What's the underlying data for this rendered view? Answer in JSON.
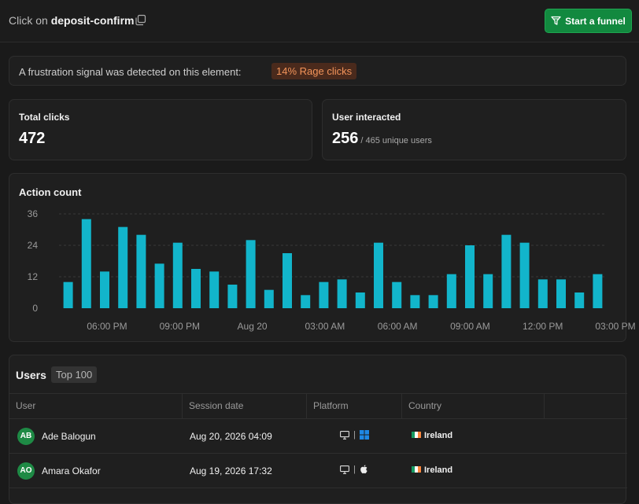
{
  "header": {
    "prefix": "Click on",
    "element": "deposit-confirm",
    "funnel_label": "Start a funnel"
  },
  "frustration": {
    "text": "A frustration signal was detected on this element:",
    "badge": "14% Rage clicks"
  },
  "stats": {
    "total_clicks_label": "Total clicks",
    "total_clicks_value": "472",
    "users_label": "User interacted",
    "users_value": "256",
    "users_sub": "/ 465 unique users"
  },
  "chart_data": {
    "type": "bar",
    "title": "Action count",
    "ylim": [
      0,
      36
    ],
    "yticks": [
      "36",
      "24",
      "12",
      "0"
    ],
    "xticks": [
      "06:00 PM",
      "09:00 PM",
      "Aug 20",
      "03:00 AM",
      "06:00 AM",
      "09:00 AM",
      "12:00 PM",
      "03:00 PM"
    ],
    "values": [
      10,
      34,
      14,
      31,
      28,
      17,
      25,
      15,
      14,
      9,
      26,
      7,
      21,
      5,
      10,
      11,
      6,
      25,
      10,
      5,
      5,
      13,
      24,
      13,
      28,
      25,
      11,
      11,
      6,
      13
    ],
    "bar_color": "#12b5cb",
    "grid": true
  },
  "users": {
    "title": "Users",
    "badge": "Top 100",
    "columns": [
      "User",
      "Session date",
      "Platform",
      "Country"
    ],
    "rows": [
      {
        "initials": "AB",
        "name": "Ade Balogun",
        "date": "Aug 20, 2026 04:09",
        "os": "windows",
        "country": "Ireland"
      },
      {
        "initials": "AO",
        "name": "Amara Okafor",
        "date": "Aug 19, 2026 17:32",
        "os": "apple",
        "country": "Ireland"
      }
    ]
  }
}
